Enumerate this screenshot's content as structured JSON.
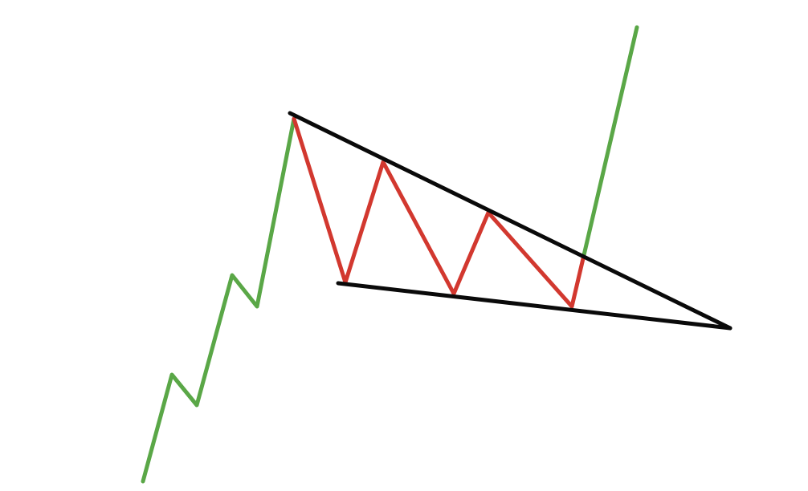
{
  "diagram": {
    "colors": {
      "trend": "#5aa747",
      "pattern": "#d2382f",
      "boundary": "#0a0a0a",
      "background": "#ffffff"
    },
    "segments": [
      {
        "name": "prior-uptrend",
        "role": "trend"
      },
      {
        "name": "pattern-swings",
        "role": "pattern"
      },
      {
        "name": "breakout-uptrend",
        "role": "trend"
      },
      {
        "name": "upper-trendline",
        "role": "boundary"
      },
      {
        "name": "lower-trendline",
        "role": "boundary"
      }
    ]
  }
}
